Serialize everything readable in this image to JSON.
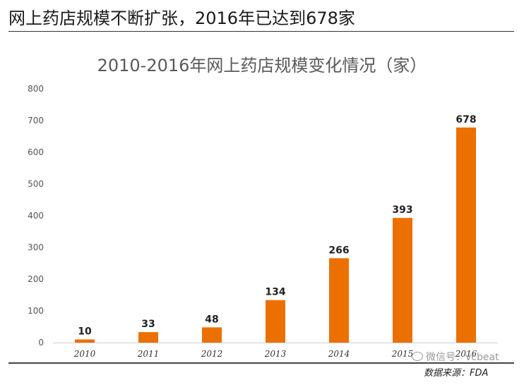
{
  "headline": "网上药店规模不断扩张，2016年已达到678家",
  "source": "数据来源：FDA",
  "watermark": "微信号：vcbeat",
  "colors": {
    "bar": "#ec7000",
    "axis_text": "#555555",
    "title": "#595959",
    "baseline": "#cfcfcf"
  },
  "chart_data": {
    "type": "bar",
    "title": "2010-2016年网上药店规模变化情况（家）",
    "xlabel": "",
    "ylabel": "",
    "categories": [
      "2010",
      "2011",
      "2012",
      "2013",
      "2014",
      "2015",
      "2016"
    ],
    "values": [
      10,
      33,
      48,
      134,
      266,
      393,
      678
    ],
    "data_labels": [
      "10",
      "33",
      "48",
      "134",
      "266",
      "393",
      "678"
    ],
    "ylim": [
      0,
      800
    ],
    "yticks": [
      "0",
      "100",
      "200",
      "300",
      "400",
      "500",
      "600",
      "700",
      "800"
    ],
    "grid": false,
    "legend": "none"
  }
}
